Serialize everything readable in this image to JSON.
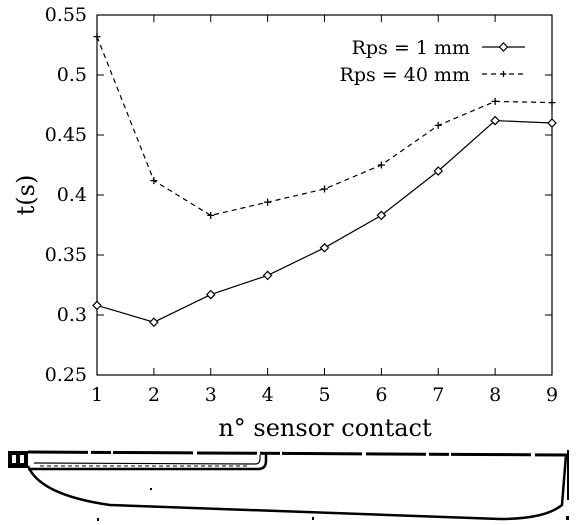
{
  "chart_data": {
    "type": "line",
    "title": "",
    "xlabel": "n° sensor contact",
    "ylabel": "t(s)",
    "x": [
      1,
      2,
      3,
      4,
      5,
      6,
      7,
      8,
      9
    ],
    "xlim": [
      1,
      9
    ],
    "ylim": [
      0.25,
      0.55
    ],
    "x_ticks": [
      "1",
      "2",
      "3",
      "4",
      "5",
      "6",
      "7",
      "8",
      "9"
    ],
    "y_ticks": [
      "0.25",
      "0.3",
      "0.35",
      "0.4",
      "0.45",
      "0.5",
      "0.55"
    ],
    "grid": false,
    "legend_position": "top-right",
    "series": [
      {
        "name": "Rps = 1 mm",
        "style": "solid",
        "marker": "diamond",
        "values": [
          0.308,
          0.294,
          0.317,
          0.333,
          0.356,
          0.383,
          0.42,
          0.462,
          0.46
        ]
      },
      {
        "name": "Rps = 40 mm",
        "style": "dashed",
        "marker": "plus",
        "values": [
          0.532,
          0.412,
          0.383,
          0.394,
          0.405,
          0.425,
          0.458,
          0.478,
          0.477
        ]
      }
    ]
  },
  "colors": {
    "ink": "#000000",
    "background": "#ffffff"
  },
  "sensor_diagram": {
    "description_icon": "sensor-probe-outline"
  }
}
